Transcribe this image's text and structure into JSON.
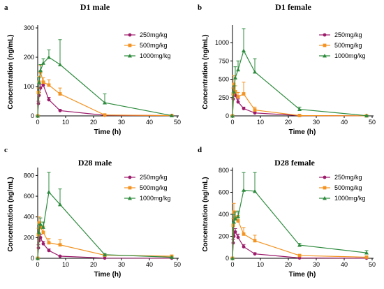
{
  "colors": {
    "250mg/kg": "#9C1B6B",
    "500mg/kg": "#F39322",
    "1000mg/kg": "#2E8B3E"
  },
  "chart_data": [
    {
      "panel": "a",
      "title": "D1 male",
      "type": "line",
      "xlabel": "Time (h)",
      "ylabel": "Concentration (ng/mL)",
      "xlim": [
        0,
        50
      ],
      "ylim": [
        0,
        300
      ],
      "xticks": [
        0,
        10,
        20,
        30,
        40,
        50
      ],
      "yticks": [
        0,
        100,
        200,
        300
      ],
      "legend": "top-right",
      "series": [
        {
          "name": "250mg/kg",
          "marker": "circle",
          "x": [
            0,
            0.25,
            0.5,
            1,
            2,
            4,
            8,
            24,
            48
          ],
          "y": [
            0,
            42,
            70,
            95,
            105,
            55,
            18,
            2,
            1
          ],
          "err": [
            0,
            8,
            10,
            12,
            12,
            8,
            4,
            1,
            0
          ]
        },
        {
          "name": "500mg/kg",
          "marker": "square",
          "x": [
            0,
            0.25,
            0.5,
            1,
            2,
            4,
            8,
            24,
            48
          ],
          "y": [
            0,
            80,
            115,
            150,
            115,
            105,
            75,
            3,
            1
          ],
          "err": [
            0,
            15,
            20,
            22,
            15,
            18,
            20,
            1,
            0
          ]
        },
        {
          "name": "1000mg/kg",
          "marker": "triangle",
          "x": [
            0,
            0.5,
            1,
            2,
            4,
            8,
            24,
            48
          ],
          "y": [
            0,
            115,
            155,
            180,
            200,
            175,
            45,
            1
          ],
          "err": [
            0,
            15,
            20,
            15,
            25,
            85,
            30,
            0
          ]
        }
      ]
    },
    {
      "panel": "b",
      "title": "D1 female",
      "type": "line",
      "xlabel": "Time (h)",
      "ylabel": "Concentration (ng/mL)",
      "xlim": [
        0,
        50
      ],
      "ylim": [
        0,
        1200
      ],
      "xticks": [
        0,
        10,
        20,
        30,
        40,
        50
      ],
      "yticks": [
        0,
        250,
        500,
        750,
        1000
      ],
      "legend": "top-right",
      "series": [
        {
          "name": "250mg/kg",
          "marker": "circle",
          "x": [
            0,
            0.25,
            0.5,
            1,
            2,
            4,
            8,
            24,
            48
          ],
          "y": [
            0,
            230,
            320,
            280,
            190,
            100,
            40,
            5,
            1
          ],
          "err": [
            0,
            60,
            80,
            60,
            40,
            20,
            10,
            2,
            0
          ]
        },
        {
          "name": "500mg/kg",
          "marker": "square",
          "x": [
            0,
            0.25,
            0.5,
            1,
            2,
            4,
            8,
            24,
            48
          ],
          "y": [
            0,
            300,
            430,
            330,
            260,
            300,
            80,
            5,
            1
          ],
          "err": [
            0,
            80,
            120,
            80,
            60,
            160,
            40,
            2,
            0
          ]
        },
        {
          "name": "1000mg/kg",
          "marker": "triangle",
          "x": [
            0,
            0.5,
            1,
            2,
            4,
            8,
            24,
            48
          ],
          "y": [
            0,
            330,
            520,
            630,
            890,
            600,
            90,
            3
          ],
          "err": [
            0,
            80,
            150,
            120,
            300,
            180,
            30,
            1
          ]
        }
      ]
    },
    {
      "panel": "c",
      "title": "D28 male",
      "type": "line",
      "xlabel": "Time (h)",
      "ylabel": "Concentration (ng/mL)",
      "xlim": [
        0,
        50
      ],
      "ylim": [
        0,
        850
      ],
      "xticks": [
        0,
        10,
        20,
        30,
        40,
        50
      ],
      "yticks": [
        0,
        200,
        400,
        600,
        800
      ],
      "legend": "top-right",
      "series": [
        {
          "name": "250mg/kg",
          "marker": "circle",
          "x": [
            0,
            0.25,
            0.5,
            1,
            2,
            4,
            8,
            24,
            48
          ],
          "y": [
            0,
            100,
            170,
            200,
            140,
            75,
            20,
            2,
            1
          ],
          "err": [
            0,
            30,
            40,
            30,
            25,
            15,
            5,
            1,
            0
          ]
        },
        {
          "name": "500mg/kg",
          "marker": "square",
          "x": [
            0,
            0.25,
            0.5,
            1,
            2,
            4,
            8,
            24,
            48
          ],
          "y": [
            0,
            230,
            340,
            300,
            250,
            150,
            130,
            30,
            20
          ],
          "err": [
            0,
            60,
            60,
            50,
            60,
            40,
            50,
            10,
            8
          ]
        },
        {
          "name": "1000mg/kg",
          "marker": "triangle",
          "x": [
            0,
            0.5,
            1,
            2,
            4,
            8,
            24,
            48
          ],
          "y": [
            0,
            250,
            330,
            300,
            640,
            520,
            35,
            10
          ],
          "err": [
            0,
            80,
            60,
            50,
            190,
            150,
            10,
            3
          ]
        }
      ]
    },
    {
      "panel": "d",
      "title": "D28 female",
      "type": "line",
      "xlabel": "Time (h)",
      "ylabel": "Concentration (ng/mL)",
      "xlim": [
        0,
        50
      ],
      "ylim": [
        0,
        800
      ],
      "xticks": [
        0,
        10,
        20,
        30,
        40,
        50
      ],
      "yticks": [
        0,
        200,
        400,
        600,
        800
      ],
      "legend": "top-right",
      "series": [
        {
          "name": "250mg/kg",
          "marker": "circle",
          "x": [
            0,
            0.25,
            0.5,
            1,
            2,
            4,
            8,
            24,
            48
          ],
          "y": [
            0,
            140,
            200,
            240,
            190,
            105,
            40,
            3,
            1
          ],
          "err": [
            0,
            30,
            40,
            30,
            30,
            20,
            10,
            1,
            0
          ]
        },
        {
          "name": "500mg/kg",
          "marker": "square",
          "x": [
            0,
            0.25,
            0.5,
            1,
            2,
            4,
            8,
            24,
            48
          ],
          "y": [
            0,
            300,
            420,
            370,
            340,
            220,
            160,
            25,
            10
          ],
          "err": [
            0,
            60,
            80,
            60,
            50,
            60,
            50,
            10,
            4
          ]
        },
        {
          "name": "1000mg/kg",
          "marker": "triangle",
          "x": [
            0,
            0.5,
            1,
            2,
            4,
            8,
            24,
            48
          ],
          "y": [
            0,
            330,
            360,
            380,
            620,
            610,
            120,
            50
          ],
          "err": [
            0,
            70,
            60,
            50,
            160,
            170,
            15,
            20
          ]
        }
      ]
    }
  ]
}
